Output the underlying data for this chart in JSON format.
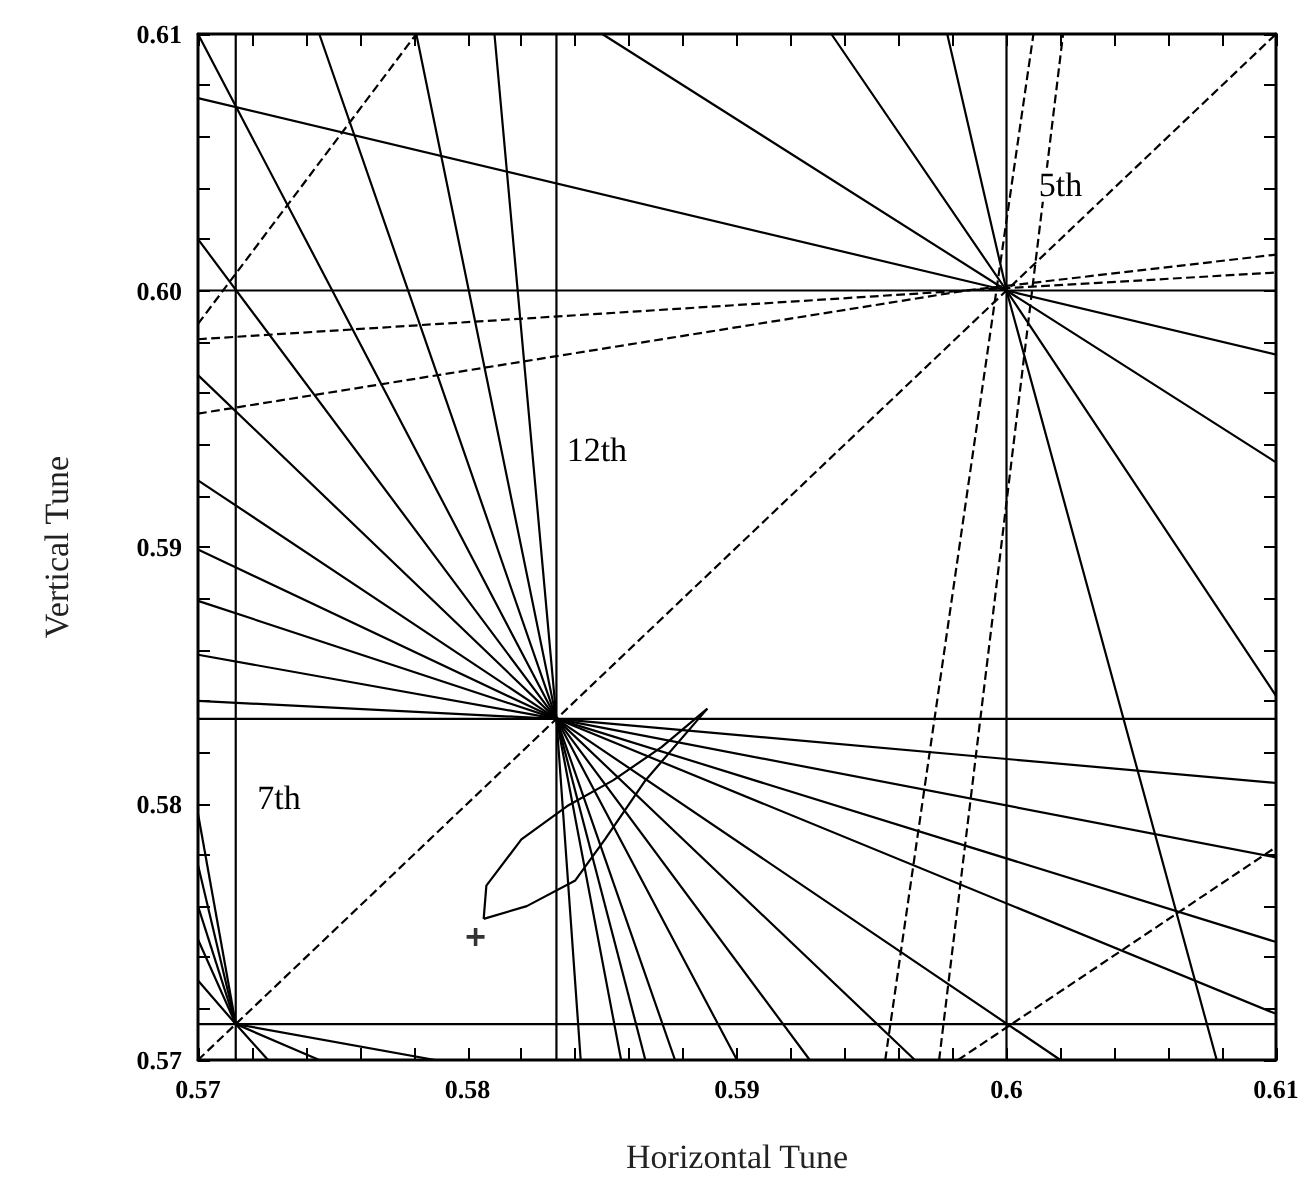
{
  "chart_data": {
    "type": "line",
    "xlabel": "Horizontal Tune",
    "ylabel": "Vertical Tune",
    "marker": "none",
    "grid": false,
    "xlim": [
      0.57,
      0.61
    ],
    "ylim": [
      0.57,
      0.61
    ],
    "xticks": [
      0.57,
      {
        "value": 0.572,
        "label": null
      },
      {
        "value": 0.574,
        "label": null
      },
      {
        "value": 0.576,
        "label": null
      },
      {
        "value": 0.578,
        "label": null
      },
      0.58,
      {
        "value": 0.582,
        "label": null
      },
      {
        "value": 0.584,
        "label": null
      },
      {
        "value": 0.586,
        "label": null
      },
      {
        "value": 0.588,
        "label": null
      },
      0.59,
      {
        "value": 0.592,
        "label": null
      },
      {
        "value": 0.594,
        "label": null
      },
      {
        "value": 0.596,
        "label": null
      },
      {
        "value": 0.598,
        "label": null
      },
      0.6,
      {
        "value": 0.602,
        "label": null
      },
      {
        "value": 0.604,
        "label": null
      },
      {
        "value": 0.606,
        "label": null
      },
      {
        "value": 0.608,
        "label": null
      },
      0.61
    ],
    "yticks": [
      0.57,
      {
        "value": 0.572,
        "label": null
      },
      {
        "value": 0.574,
        "label": null
      },
      {
        "value": 0.576,
        "label": null
      },
      {
        "value": 0.578,
        "label": null
      },
      0.58,
      {
        "value": 0.582,
        "label": null
      },
      {
        "value": 0.584,
        "label": null
      },
      {
        "value": 0.586,
        "label": null
      },
      {
        "value": 0.588,
        "label": null
      },
      0.59,
      {
        "value": 0.592,
        "label": null
      },
      {
        "value": 0.594,
        "label": null
      },
      {
        "value": 0.596,
        "label": null
      },
      {
        "value": 0.598,
        "label": null
      },
      {
        "value": 0.6,
        "label": "0.60"
      },
      {
        "value": 0.602,
        "label": null
      },
      {
        "value": 0.604,
        "label": null
      },
      {
        "value": 0.606,
        "label": null
      },
      {
        "value": 0.608,
        "label": null
      },
      0.61
    ],
    "annotations": [
      "5th",
      "12th",
      "7th"
    ],
    "series": [
      {
        "color": "#000000",
        "x": [
          0.5714,
          0.5714
        ],
        "values": [
          0.57,
          0.61
        ]
      },
      {
        "color": "#000000",
        "x": [
          0.5833,
          0.5833
        ],
        "values": [
          0.57,
          0.61
        ]
      },
      {
        "color": "#000000",
        "x": [
          0.6,
          0.6
        ],
        "values": [
          0.57,
          0.61
        ]
      },
      {
        "color": "#000000",
        "x": [
          0.57,
          0.61
        ],
        "values": [
          0.5714,
          0.5714
        ]
      },
      {
        "color": "#000000",
        "x": [
          0.57,
          0.61
        ],
        "values": [
          0.5833,
          0.5833
        ]
      },
      {
        "color": "#000000",
        "x": [
          0.57,
          0.61
        ],
        "values": [
          0.6,
          0.6
        ]
      },
      {
        "color": "#000000",
        "x": [
          0.57,
          0.5833,
          0.59
        ],
        "values": [
          0.61,
          0.5833,
          0.57
        ]
      },
      {
        "color": "#000000",
        "x": [
          0.5745,
          0.5833,
          0.5877
        ],
        "values": [
          0.61,
          0.5833,
          0.57
        ]
      },
      {
        "color": "#000000",
        "x": [
          0.5781,
          0.5833,
          0.5857
        ],
        "values": [
          0.61,
          0.5833,
          0.57
        ]
      },
      {
        "color": "#000000",
        "x": [
          0.581,
          0.5833,
          0.5842
        ],
        "values": [
          0.61,
          0.5833,
          0.57
        ]
      },
      {
        "color": "#000000",
        "x": [
          0.57,
          0.5833,
          0.5927
        ],
        "values": [
          0.602,
          0.5833,
          0.57
        ]
      },
      {
        "color": "#000000",
        "x": [
          0.57,
          0.5833,
          0.5966
        ],
        "values": [
          0.5967,
          0.5833,
          0.57
        ]
      },
      {
        "color": "#000000",
        "x": [
          0.57,
          0.5833,
          0.602
        ],
        "values": [
          0.5926,
          0.5833,
          0.57
        ]
      },
      {
        "color": "#000000",
        "x": [
          0.57,
          0.5833,
          0.61
        ],
        "values": [
          0.5899,
          0.5833,
          0.5718
        ]
      },
      {
        "color": "#000000",
        "x": [
          0.57,
          0.5833,
          0.61
        ],
        "values": [
          0.5879,
          0.5833,
          0.5746
        ]
      },
      {
        "color": "#000000",
        "x": [
          0.57,
          0.5833,
          0.61
        ],
        "values": [
          0.5858,
          0.5833,
          0.5779
        ]
      },
      {
        "color": "#000000",
        "x": [
          0.57,
          0.5833,
          0.61
        ],
        "values": [
          0.584,
          0.5833,
          0.5808
        ]
      },
      {
        "color": "#000000",
        "x": [
          0.5833,
          0.5866
        ],
        "values": [
          0.5833,
          0.57
        ]
      },
      {
        "color": "#000000",
        "x": [
          0.57,
          0.6,
          0.61
        ],
        "values": [
          0.6075,
          0.6,
          0.5975
        ]
      },
      {
        "color": "#000000",
        "x": [
          0.585,
          0.6,
          0.61
        ],
        "values": [
          0.61,
          0.6,
          0.5933
        ]
      },
      {
        "color": "#000000",
        "x": [
          0.5935,
          0.6,
          0.61
        ],
        "values": [
          0.61,
          0.6,
          0.5842
        ]
      },
      {
        "color": "#000000",
        "x": [
          0.5978,
          0.6,
          0.6078
        ],
        "values": [
          0.61,
          0.6,
          0.57
        ]
      },
      {
        "color": "#000000",
        "x": [
          0.5714,
          0.5788
        ],
        "values": [
          0.5714,
          0.57
        ]
      },
      {
        "color": "#000000",
        "x": [
          0.5714,
          0.5745
        ],
        "values": [
          0.5714,
          0.57
        ]
      },
      {
        "color": "#000000",
        "x": [
          0.5714,
          0.57
        ],
        "values": [
          0.5714,
          0.5796
        ]
      },
      {
        "color": "#000000",
        "x": [
          0.5714,
          0.57
        ],
        "values": [
          0.5714,
          0.5776
        ]
      },
      {
        "color": "#000000",
        "x": [
          0.5714,
          0.57
        ],
        "values": [
          0.5714,
          0.576
        ]
      },
      {
        "color": "#000000",
        "x": [
          0.5714,
          0.57
        ],
        "values": [
          0.5714,
          0.5747
        ]
      },
      {
        "color": "#000000",
        "x": [
          0.57,
          0.5714,
          0.5726
        ],
        "values": [
          0.5731,
          0.5714,
          0.57
        ]
      },
      {
        "color": "#000000",
        "line_style": "dashed",
        "x": [
          0.57,
          0.61
        ],
        "values": [
          0.57,
          0.61
        ]
      },
      {
        "color": "#000000",
        "line_style": "dashed",
        "x": [
          0.57,
          0.5985,
          0.61
        ],
        "values": [
          0.5981,
          0.6,
          0.6007
        ]
      },
      {
        "color": "#000000",
        "line_style": "dashed",
        "x": [
          0.57,
          0.5985,
          0.61
        ],
        "values": [
          0.5952,
          0.6,
          0.6014
        ]
      },
      {
        "color": "#000000",
        "line_style": "dashed",
        "x": [
          0.57,
          0.5781
        ],
        "values": [
          0.5987,
          0.61
        ]
      },
      {
        "color": "#000000",
        "line_style": "dashed",
        "x": [
          0.5955,
          0.601
        ],
        "values": [
          0.57,
          0.61
        ]
      },
      {
        "color": "#000000",
        "line_style": "dashed",
        "x": [
          0.5975,
          0.6021
        ],
        "values": [
          0.57,
          0.61
        ]
      },
      {
        "color": "#000000",
        "line_style": "dashed",
        "x": [
          0.5982,
          0.61
        ],
        "values": [
          0.57,
          0.5783
        ]
      },
      {
        "color": "#000000",
        "x": [
          0.5806,
          0.5807,
          0.582,
          0.5837,
          0.5854,
          0.5872,
          0.5889
        ],
        "values": [
          0.5755,
          0.5768,
          0.5786,
          0.5799,
          0.5809,
          0.5822,
          0.5837
        ]
      },
      {
        "color": "#000000",
        "x": [
          0.5806,
          0.5822,
          0.584,
          0.5851,
          0.5866,
          0.5889
        ],
        "values": [
          0.5755,
          0.576,
          0.577,
          0.5786,
          0.5809,
          0.5837
        ]
      },
      {
        "type": "scatter",
        "marker": "cross",
        "color": "#000000",
        "x": [
          0.5803
        ],
        "values": [
          0.5748
        ]
      }
    ]
  }
}
